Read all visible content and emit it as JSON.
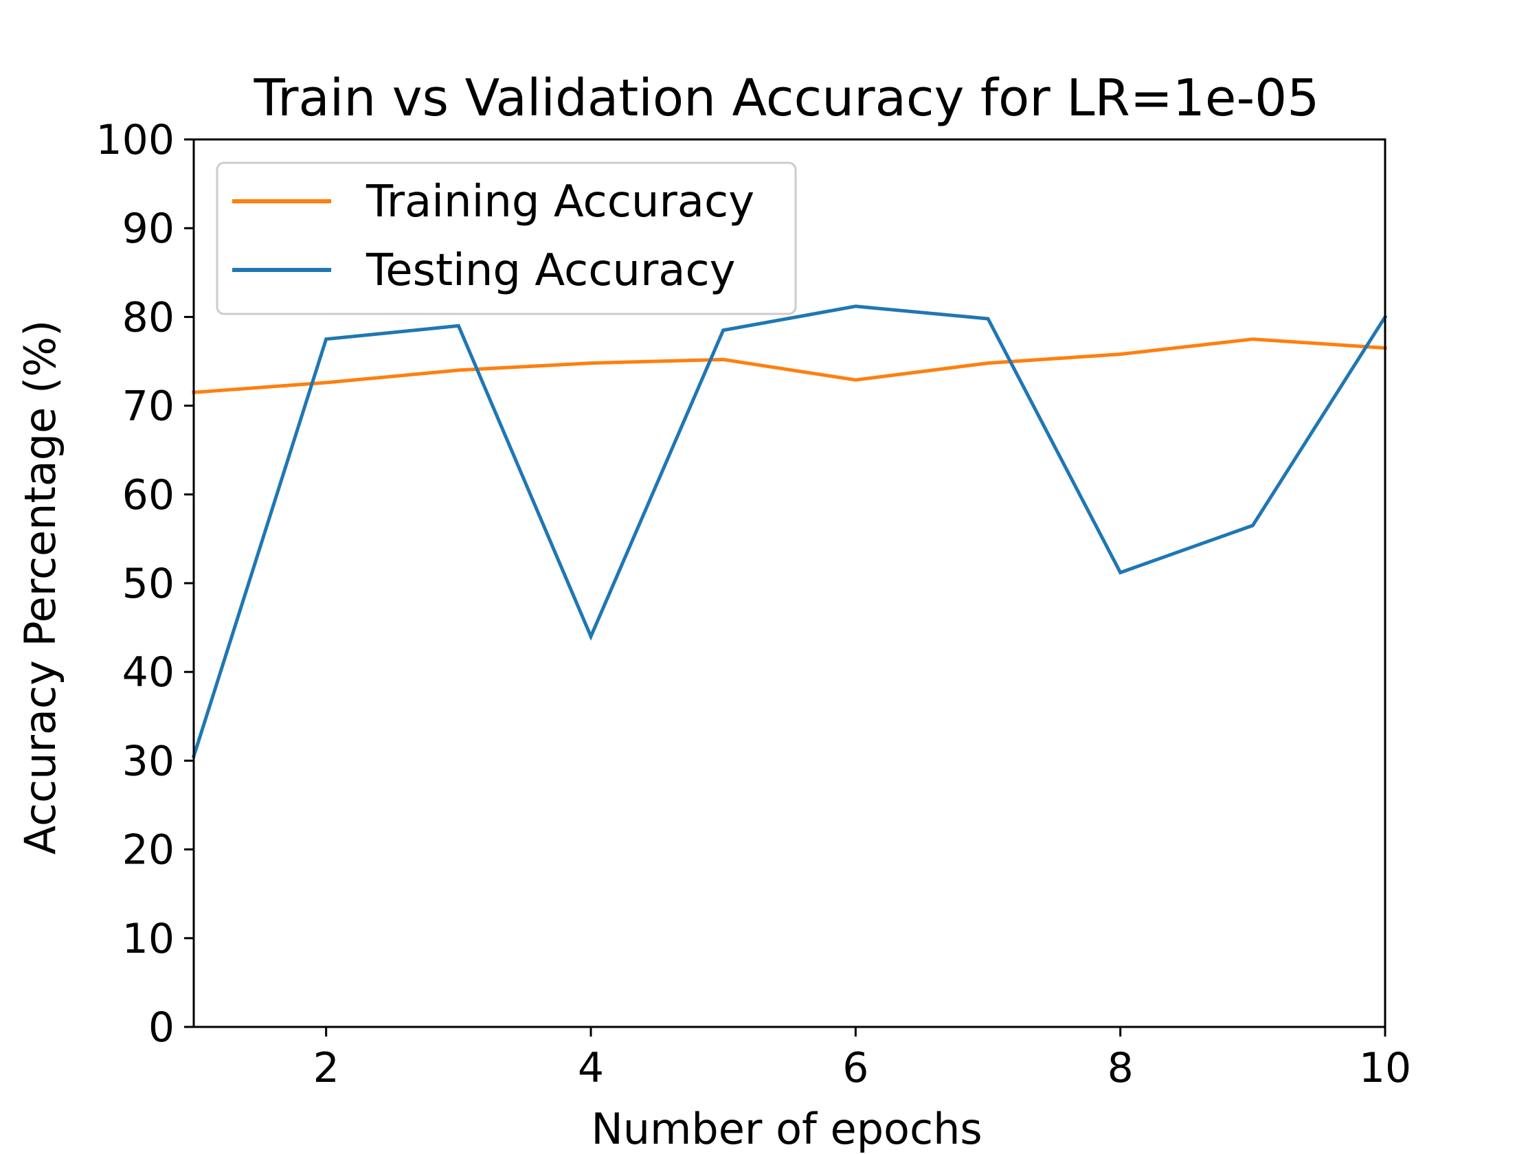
{
  "chart_data": {
    "type": "line",
    "title": "Train vs Validation Accuracy for LR=1e-05",
    "xlabel": "Number of epochs",
    "ylabel": "Accuracy Percentage (%)",
    "xlim": [
      1,
      10
    ],
    "ylim": [
      0,
      100
    ],
    "xticks": [
      2,
      4,
      6,
      8,
      10
    ],
    "yticks": [
      0,
      10,
      20,
      30,
      40,
      50,
      60,
      70,
      80,
      90,
      100
    ],
    "grid": false,
    "legend_position": "upper-left",
    "x": [
      1,
      2,
      3,
      4,
      5,
      6,
      7,
      8,
      9,
      10
    ],
    "series": [
      {
        "name": "Training Accuracy",
        "color": "#ff7f0e",
        "values": [
          71.5,
          72.6,
          74.0,
          74.8,
          75.2,
          72.9,
          74.8,
          75.8,
          77.5,
          76.5
        ]
      },
      {
        "name": "Testing Accuracy",
        "color": "#1f77b4",
        "values": [
          30.5,
          77.5,
          79.0,
          44.0,
          78.5,
          81.2,
          79.8,
          51.2,
          56.5,
          80.0
        ]
      }
    ]
  }
}
